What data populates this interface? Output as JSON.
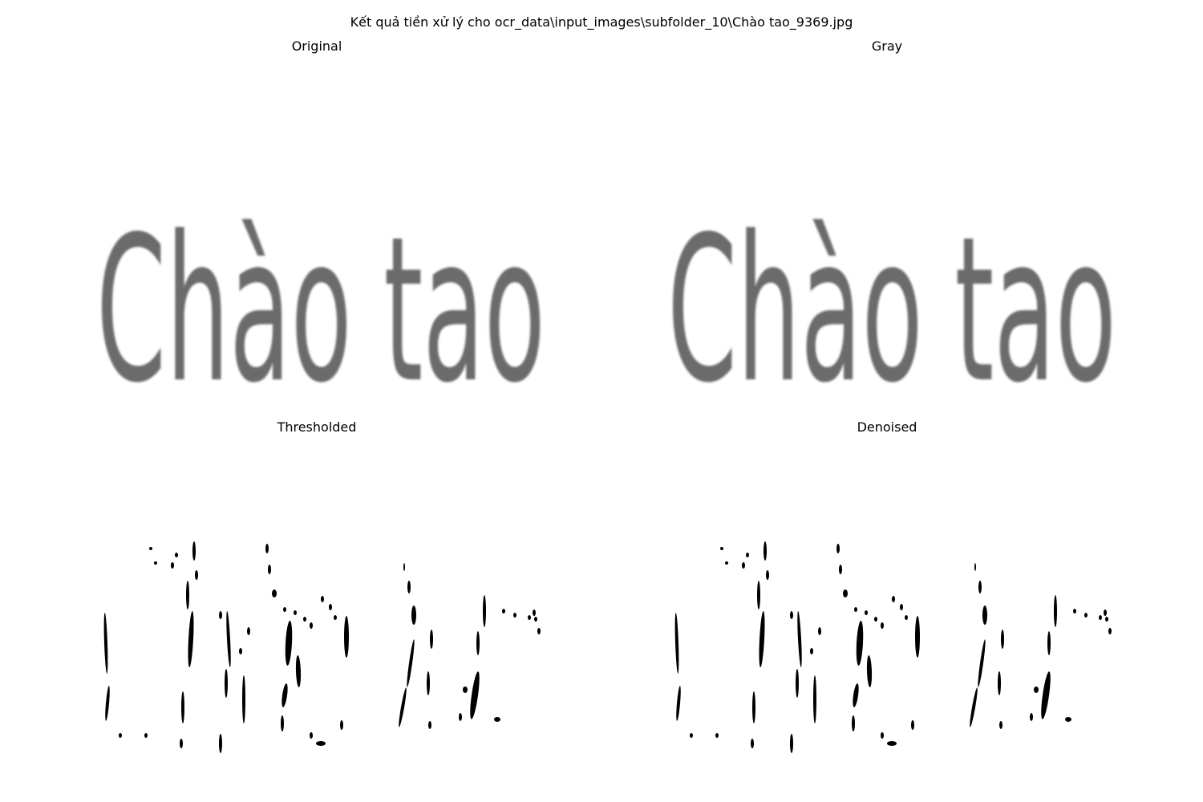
{
  "figure": {
    "suptitle": "Kết quả tiền xử lý cho ocr_data\\input_images\\subfolder_10\\Chào tao_9369.jpg"
  },
  "panels": [
    {
      "title": "Original",
      "rendering": "grayscale-text"
    },
    {
      "title": "Gray",
      "rendering": "grayscale-text"
    },
    {
      "title": "Thresholded",
      "rendering": "binary-fragments"
    },
    {
      "title": "Denoised",
      "rendering": "binary-fragments"
    }
  ],
  "image_text": "Chào tao",
  "colors": {
    "ink": "#000000",
    "background": "#ffffff",
    "gray_ink": "#3a3a3a"
  }
}
